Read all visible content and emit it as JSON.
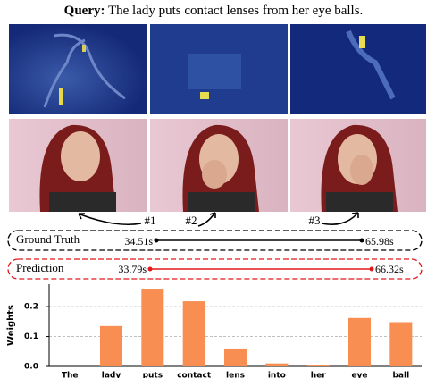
{
  "query": {
    "label": "Query:",
    "text": "The lady puts contact lenses from her eye balls."
  },
  "markers": [
    "#1",
    "#2",
    "#3"
  ],
  "timeline": {
    "ground_truth": {
      "label": "Ground Truth",
      "start": "34.51s",
      "end": "65.98s"
    },
    "prediction": {
      "label": "Prediction",
      "start": "33.79s",
      "end": "66.32s"
    }
  },
  "chart_data": {
    "type": "bar",
    "y_label": "Weights",
    "categories": [
      "The",
      "lady",
      "puts",
      "contact",
      "lens",
      "into",
      "her",
      "eye",
      "ball"
    ],
    "values": [
      0.0,
      0.135,
      0.26,
      0.218,
      0.06,
      0.01,
      0.003,
      0.162,
      0.148
    ],
    "color": "#f98e52",
    "ylim": [
      0,
      0.275
    ],
    "yticks": [
      {
        "value": 0,
        "label": "0.0"
      },
      0.1,
      0.2
    ],
    "grid": true
  }
}
